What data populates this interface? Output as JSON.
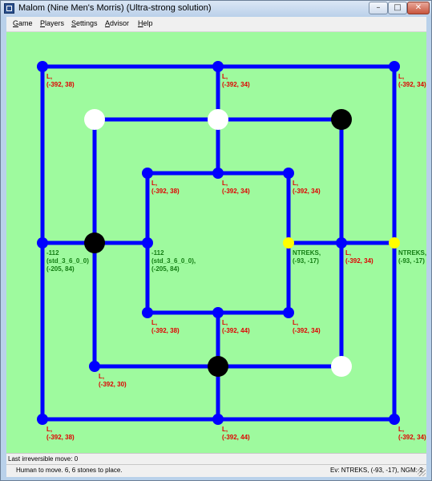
{
  "window": {
    "title": "Malom (Nine Men's Morris) (Ultra-strong solution)",
    "minimize_glyph": "–",
    "maximize_glyph": "□",
    "close_glyph": "✕"
  },
  "menu": [
    "Game",
    "Players",
    "Settings",
    "Advisor",
    "Help"
  ],
  "board": {
    "line_color": "#0000ff",
    "background": "#9efa9e",
    "points": [
      {
        "id": "a7",
        "stone": "empty",
        "label": [
          "L,",
          "(-392, 38)"
        ],
        "label_color": "red"
      },
      {
        "id": "d7",
        "stone": "empty",
        "label": [
          "L,",
          "(-392, 34)"
        ],
        "label_color": "red"
      },
      {
        "id": "g7",
        "stone": "empty",
        "label": [
          "L,",
          "(-392, 34)"
        ],
        "label_color": "red"
      },
      {
        "id": "b6",
        "stone": "white",
        "label": [],
        "label_color": "red"
      },
      {
        "id": "d6",
        "stone": "white",
        "label": [],
        "label_color": "red"
      },
      {
        "id": "f6",
        "stone": "black",
        "label": [],
        "label_color": "red"
      },
      {
        "id": "c5",
        "stone": "empty",
        "label": [
          "L,",
          "(-392, 38)"
        ],
        "label_color": "red"
      },
      {
        "id": "d5",
        "stone": "empty",
        "label": [
          "L,",
          "(-392, 34)"
        ],
        "label_color": "red"
      },
      {
        "id": "e5",
        "stone": "empty",
        "label": [
          "L,",
          "(-392, 34)"
        ],
        "label_color": "red"
      },
      {
        "id": "a4",
        "stone": "empty",
        "label": [
          "-112",
          "(std_3_6_0_0)",
          "(-205, 84)"
        ],
        "label_color": "green"
      },
      {
        "id": "b4",
        "stone": "black",
        "label": [],
        "label_color": "red"
      },
      {
        "id": "c4",
        "stone": "empty",
        "label": [
          "-112",
          "(std_3_6_0_0),",
          "(-205, 84)"
        ],
        "label_color": "green"
      },
      {
        "id": "e4",
        "stone": "highlight",
        "label": [
          "NTREKS,",
          "(-93, -17)"
        ],
        "label_color": "green"
      },
      {
        "id": "f4",
        "stone": "empty",
        "label": [
          "L,",
          "(-392, 34)"
        ],
        "label_color": "red"
      },
      {
        "id": "g4",
        "stone": "highlight",
        "label": [
          "NTREKS,",
          "(-93, -17)"
        ],
        "label_color": "green"
      },
      {
        "id": "c3",
        "stone": "empty",
        "label": [
          "L,",
          "(-392, 38)"
        ],
        "label_color": "red"
      },
      {
        "id": "d3",
        "stone": "empty",
        "label": [
          "L,",
          "(-392, 44)"
        ],
        "label_color": "red"
      },
      {
        "id": "e3",
        "stone": "empty",
        "label": [
          "L,",
          "(-392, 34)"
        ],
        "label_color": "red"
      },
      {
        "id": "b2",
        "stone": "empty",
        "label": [
          "L,",
          "(-392, 30)"
        ],
        "label_color": "red"
      },
      {
        "id": "d2",
        "stone": "black",
        "label": [],
        "label_color": "red"
      },
      {
        "id": "f2",
        "stone": "white",
        "label": [],
        "label_color": "red"
      },
      {
        "id": "a1",
        "stone": "empty",
        "label": [
          "L,",
          "(-392, 38)"
        ],
        "label_color": "red"
      },
      {
        "id": "d1",
        "stone": "empty",
        "label": [
          "L,",
          "(-392, 44)"
        ],
        "label_color": "red"
      },
      {
        "id": "g1",
        "stone": "empty",
        "label": [
          "L,",
          "(-392, 34)"
        ],
        "label_color": "red"
      }
    ]
  },
  "status": {
    "last_irreversible_move": "Last irreversible move: 0",
    "turn_message": "Human to move.  6, 6 stones to place.",
    "evaluation": "Ev: NTREKS, (-93, -17), NGM: 2"
  }
}
